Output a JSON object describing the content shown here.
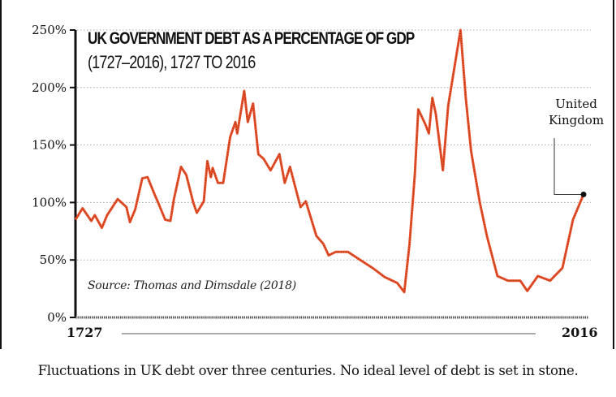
{
  "chart_data": {
    "type": "line",
    "title": "UK GOVERNMENT DEBT AS A PERCENTAGE OF GDP",
    "subtitle": "(1727–2016), 1727 TO 2016",
    "source": "Source: Thomas and Dimsdale (2018)",
    "xlabel": "",
    "ylabel": "",
    "xlim": [
      1727,
      2016
    ],
    "ylim": [
      0,
      250
    ],
    "yticks": [
      0,
      50,
      100,
      150,
      200,
      250
    ],
    "ytick_labels": [
      "0%",
      "50%",
      "100%",
      "150%",
      "200%",
      "250%"
    ],
    "xtick_labels": [
      "1727",
      "2016"
    ],
    "grid": "horizontal dotted",
    "series": [
      {
        "name": "United Kingdom",
        "color": "#e8502a",
        "x": [
          1727,
          1731,
          1736,
          1738,
          1742,
          1745,
          1751,
          1756,
          1758,
          1761,
          1765,
          1768,
          1772,
          1774,
          1778,
          1781,
          1783,
          1787,
          1790,
          1794,
          1796,
          1800,
          1802,
          1804,
          1805,
          1808,
          1811,
          1815,
          1818,
          1819,
          1823,
          1825,
          1828,
          1831,
          1834,
          1838,
          1843,
          1846,
          1849,
          1855,
          1858,
          1864,
          1868,
          1871,
          1875,
          1882,
          1889,
          1896,
          1903,
          1910,
          1914,
          1917,
          1920,
          1922,
          1926,
          1928,
          1930,
          1932,
          1936,
          1939,
          1946,
          1949,
          1952,
          1957,
          1961,
          1967,
          1973,
          1980,
          1984,
          1990,
          1997,
          2004,
          2010,
          2016
        ],
        "y": [
          85,
          95,
          84,
          89,
          78,
          89,
          103,
          96,
          83,
          94,
          121,
          122,
          107,
          100,
          85,
          84,
          103,
          131,
          124,
          100,
          91,
          101,
          136,
          122,
          130,
          117,
          117,
          157,
          170,
          160,
          197,
          170,
          186,
          142,
          138,
          128,
          142,
          117,
          131,
          96,
          101,
          71,
          64,
          54,
          57,
          57,
          50,
          43,
          35,
          30,
          22,
          64,
          124,
          181,
          168,
          160,
          191,
          177,
          128,
          184,
          250,
          191,
          145,
          100,
          71,
          36,
          32,
          32,
          23,
          36,
          32,
          43,
          85,
          107
        ]
      }
    ],
    "annotations": [
      "United Kingdom"
    ]
  },
  "caption": "Fluctuations in UK debt over three centuries. No ideal level of debt is set in stone."
}
